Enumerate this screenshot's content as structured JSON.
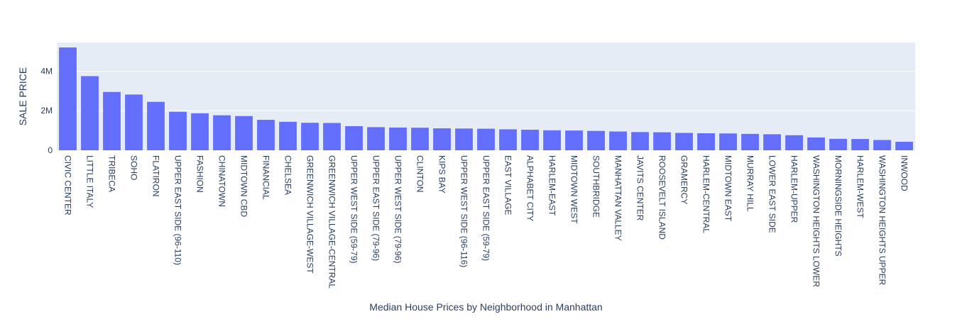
{
  "chart_data": {
    "type": "bar",
    "title": "",
    "xlabel": "Median House Prices by Neighborhood in Manhattan",
    "ylabel": "SALE PRICE",
    "ylim": [
      0,
      5450000
    ],
    "yticks": [
      0,
      2000000,
      4000000
    ],
    "ytick_labels": [
      "0",
      "2M",
      "4M"
    ],
    "grid": true,
    "bar_color": "#636efa",
    "plot_bg": "#e5ecf6",
    "categories": [
      "CIVIC CENTER",
      "LITTLE ITALY",
      "TRIBECA",
      "SOHO",
      "FLATIRON",
      "UPPER EAST SIDE (96-110)",
      "FASHION",
      "CHINATOWN",
      "MIDTOWN CBD",
      "FINANCIAL",
      "CHELSEA",
      "GREENWICH VILLAGE-WEST",
      "GREENWICH VILLAGE-CENTRAL",
      "UPPER WEST SIDE (59-79)",
      "UPPER EAST SIDE (79-96)",
      "UPPER WEST SIDE (79-96)",
      "CLINTON",
      "KIPS BAY",
      "UPPER WEST SIDE (96-116)",
      "UPPER EAST SIDE (59-79)",
      "EAST VILLAGE",
      "ALPHABET CITY",
      "HARLEM-EAST",
      "MIDTOWN WEST",
      "SOUTHBRIDGE",
      "MANHATTAN VALLEY",
      "JAVITS CENTER",
      "ROOSEVELT ISLAND",
      "GRAMERCY",
      "HARLEM-CENTRAL",
      "MIDTOWN EAST",
      "MURRAY HILL",
      "LOWER EAST SIDE",
      "HARLEM-UPPER",
      "WASHINGTON HEIGHTS LOWER",
      "MORNINGSIDE HEIGHTS",
      "HARLEM-WEST",
      "WASHINGTON HEIGHTS UPPER",
      "INWOOD"
    ],
    "values": [
      5200000,
      3750000,
      2950000,
      2820000,
      2450000,
      1950000,
      1870000,
      1770000,
      1730000,
      1540000,
      1440000,
      1390000,
      1380000,
      1220000,
      1170000,
      1150000,
      1140000,
      1110000,
      1100000,
      1090000,
      1060000,
      1040000,
      1010000,
      1000000,
      980000,
      950000,
      920000,
      910000,
      880000,
      860000,
      850000,
      830000,
      810000,
      760000,
      650000,
      580000,
      570000,
      520000,
      430000
    ]
  }
}
